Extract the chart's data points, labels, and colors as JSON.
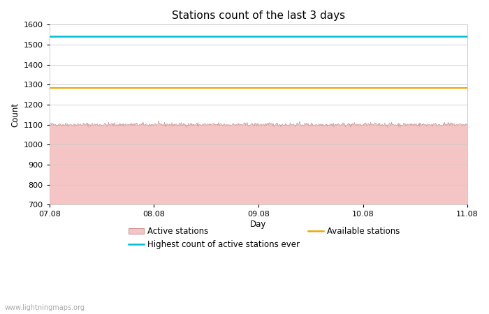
{
  "title": "Stations count of the last 3 days",
  "xlabel": "Day",
  "ylabel": "Count",
  "ylim": [
    700,
    1600
  ],
  "yticks": [
    700,
    800,
    900,
    1000,
    1100,
    1200,
    1300,
    1400,
    1500,
    1600
  ],
  "x_tick_positions": [
    7.08,
    8.08,
    9.08,
    10.08,
    11.08
  ],
  "x_tick_labels": [
    "07.08",
    "08.08",
    "09.08",
    "10.08",
    "11.08"
  ],
  "x_start": 7.08,
  "x_end": 11.08,
  "active_stations_mean": 1100,
  "active_stations_noise": 5,
  "available_stations_level": 1285,
  "highest_count_level": 1543,
  "fill_color": "#f5c5c5",
  "fill_edge_color": "#cc9999",
  "available_color": "#f0a500",
  "highest_color": "#00bcd4",
  "background_color": "#ffffff",
  "grid_color": "#cccccc",
  "title_fontsize": 11,
  "label_fontsize": 8.5,
  "tick_fontsize": 8,
  "watermark": "www.lightningmaps.org",
  "num_points": 800
}
